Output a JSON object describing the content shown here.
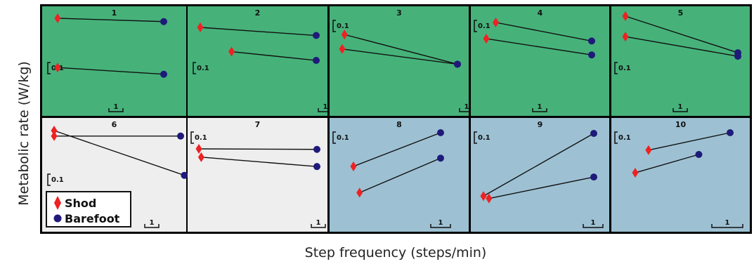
{
  "chart_data": {
    "type": "line",
    "xlabel": "Step frequency (steps/min)",
    "ylabel": "Metabolic rate (W/kg)",
    "series_names": [
      "Shod",
      "Barefoot"
    ],
    "colors": {
      "shod": "#ee2222",
      "barefoot": "#1f1a7a",
      "line": "#111111",
      "panel_green": "#46b27a",
      "panel_grey": "#eeeeee",
      "panel_blue": "#9dc1d3",
      "border": "#000000"
    },
    "panels": [
      {
        "number": "1",
        "bg": "green",
        "y_scale_label": "0.1",
        "x_scale_label": "1",
        "pairs": [
          {
            "shod": [
              0.0,
              1.0
            ],
            "barefoot": [
              1.0,
              0.96
            ]
          },
          {
            "shod": [
              0.0,
              0.41
            ],
            "barefoot": [
              1.0,
              0.33
            ]
          }
        ]
      },
      {
        "number": "2",
        "bg": "green",
        "y_scale_label": "0.1",
        "x_scale_label": "1",
        "pairs": [
          {
            "shod": [
              0.0,
              1.0
            ],
            "barefoot": [
              1.0,
              0.88
            ]
          },
          {
            "shod": [
              0.27,
              0.64
            ],
            "barefoot": [
              1.0,
              0.51
            ]
          }
        ]
      },
      {
        "number": "3",
        "bg": "green",
        "y_scale_label": "0.1",
        "x_scale_label": "1",
        "pairs": [
          {
            "shod": [
              0.02,
              0.91
            ],
            "barefoot": [
              1.0,
              0.54
            ]
          },
          {
            "shod": [
              0.0,
              0.73
            ],
            "barefoot": [
              1.0,
              0.54
            ]
          }
        ]
      },
      {
        "number": "4",
        "bg": "green",
        "y_scale_label": "0.1",
        "x_scale_label": "1",
        "pairs": [
          {
            "shod": [
              0.09,
              1.0
            ],
            "barefoot": [
              1.0,
              0.76
            ]
          },
          {
            "shod": [
              0.0,
              0.79
            ],
            "barefoot": [
              1.0,
              0.58
            ]
          }
        ]
      },
      {
        "number": "5",
        "bg": "green",
        "y_scale_label": "0.1",
        "x_scale_label": "1",
        "pairs": [
          {
            "shod": [
              0.0,
              1.0
            ],
            "barefoot": [
              1.0,
              0.59
            ]
          },
          {
            "shod": [
              0.0,
              0.77
            ],
            "barefoot": [
              1.0,
              0.55
            ]
          }
        ]
      },
      {
        "number": "6",
        "bg": "grey",
        "y_scale_label": "0.1",
        "x_scale_label": "1",
        "pairs": [
          {
            "shod": [
              0.0,
              1.0
            ],
            "barefoot": [
              1.03,
              0.51
            ]
          },
          {
            "shod": [
              0.0,
              0.94
            ],
            "barefoot": [
              1.0,
              0.94
            ]
          }
        ]
      },
      {
        "number": "7",
        "bg": "grey",
        "y_scale_label": "0.1",
        "x_scale_label": "1",
        "pairs": [
          {
            "shod": [
              0.0,
              1.0
            ],
            "barefoot": [
              1.0,
              0.99
            ]
          },
          {
            "shod": [
              0.02,
              0.84
            ],
            "barefoot": [
              1.0,
              0.66
            ]
          }
        ]
      },
      {
        "number": "8",
        "bg": "blue",
        "y_scale_label": "0.1",
        "x_scale_label": "1",
        "pairs": [
          {
            "shod": [
              0.0,
              0.59
            ],
            "barefoot": [
              1.0,
              1.0
            ]
          },
          {
            "shod": [
              0.07,
              0.27
            ],
            "barefoot": [
              1.0,
              0.69
            ]
          }
        ]
      },
      {
        "number": "9",
        "bg": "blue",
        "y_scale_label": "0.1",
        "x_scale_label": "1",
        "pairs": [
          {
            "shod": [
              0.0,
              0.21
            ],
            "barefoot": [
              1.0,
              1.0
            ]
          },
          {
            "shod": [
              0.05,
              0.18
            ],
            "barefoot": [
              1.0,
              0.45
            ]
          }
        ]
      },
      {
        "number": "10",
        "bg": "blue",
        "y_scale_label": "0.1",
        "x_scale_label": "1",
        "pairs": [
          {
            "shod": [
              0.14,
              0.8
            ],
            "barefoot": [
              1.0,
              1.0
            ]
          },
          {
            "shod": [
              0.0,
              0.54
            ],
            "barefoot": [
              0.67,
              0.75
            ]
          }
        ]
      }
    ]
  }
}
